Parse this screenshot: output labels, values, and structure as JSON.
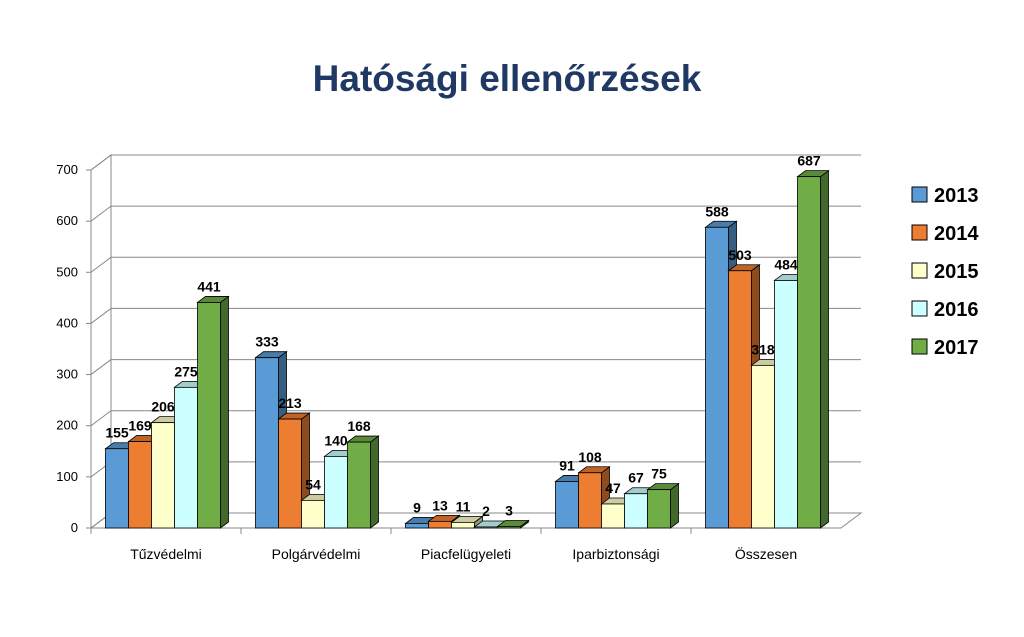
{
  "chart_data": {
    "type": "bar",
    "title": "Hatósági ellenőrzések",
    "categories": [
      "Tűzvédelmi",
      "Polgárvédelmi",
      "Piacfelügyeleti",
      "Iparbiztonsági",
      "Összesen"
    ],
    "series": [
      {
        "name": "2013",
        "color": "#5b9bd5",
        "values": [
          155,
          333,
          9,
          91,
          588
        ]
      },
      {
        "name": "2014",
        "color": "#ed7d31",
        "values": [
          169,
          213,
          13,
          108,
          503
        ]
      },
      {
        "name": "2015",
        "color": "#ffffcc",
        "values": [
          206,
          54,
          11,
          47,
          318
        ]
      },
      {
        "name": "2016",
        "color": "#ccffff",
        "values": [
          275,
          140,
          2,
          67,
          484
        ]
      },
      {
        "name": "2017",
        "color": "#70ad47",
        "values": [
          441,
          168,
          3,
          75,
          687
        ]
      }
    ],
    "yticks": [
      0,
      100,
      200,
      300,
      400,
      500,
      600,
      700
    ],
    "ylim": [
      0,
      700
    ],
    "grid": true,
    "legend": "right",
    "style": "3d-clustered-column"
  }
}
